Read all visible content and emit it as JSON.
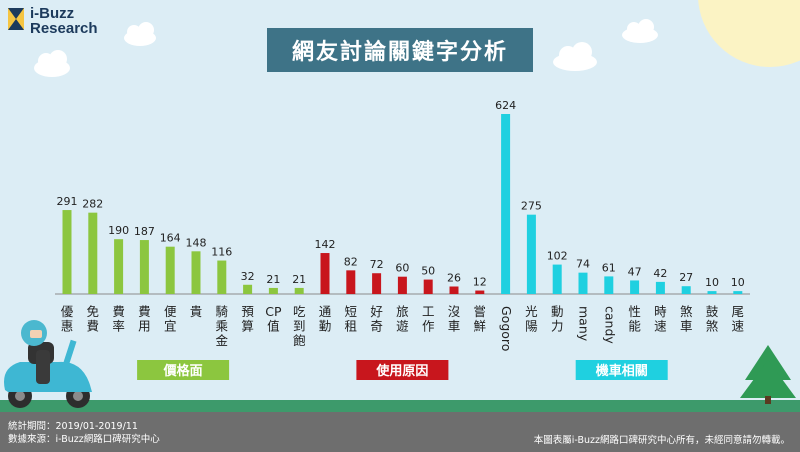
{
  "logo": {
    "line1": "i-Buzz",
    "line2": "Research"
  },
  "title": "網友討論關鍵字分析",
  "chart_data": {
    "type": "bar",
    "categories": [
      "優惠",
      "免費",
      "費率",
      "費用",
      "便宜",
      "貴",
      "騎乘金",
      "預算",
      "CP值",
      "吃到飽",
      "通勤",
      "短租",
      "好奇",
      "旅遊",
      "工作",
      "沒車",
      "嘗鮮",
      "Gogoro",
      "光陽",
      "動力",
      "many",
      "candy",
      "性能",
      "時速",
      "煞車",
      "鼓煞",
      "尾速"
    ],
    "values": [
      291,
      282,
      190,
      187,
      164,
      148,
      116,
      32,
      21,
      21,
      142,
      82,
      72,
      60,
      50,
      26,
      12,
      624,
      275,
      102,
      74,
      61,
      47,
      42,
      27,
      10,
      10
    ],
    "groups": [
      {
        "label": "價格面",
        "color": "#8cc63f",
        "start": 0,
        "end": 9
      },
      {
        "label": "使用原因",
        "color": "#c8161d",
        "start": 10,
        "end": 16
      },
      {
        "label": "機車相關",
        "color": "#1fd0e0",
        "start": 17,
        "end": 26
      }
    ],
    "ylim": [
      0,
      624
    ]
  },
  "footer": {
    "period": "統計期間：2019/01-2019/11",
    "source": "數據來源：i-Buzz網路口碑研究中心",
    "copyright": "本圖表屬i-Buzz網路口碑研究中心所有，未經同意請勿轉載。"
  }
}
